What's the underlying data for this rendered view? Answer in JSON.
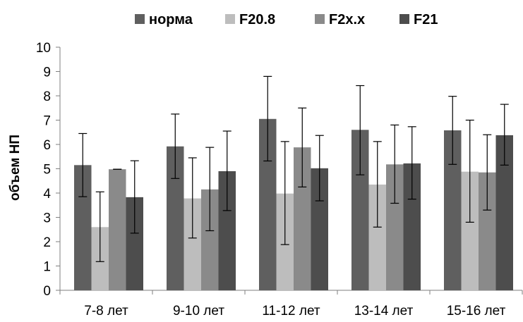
{
  "chart_data": {
    "type": "bar",
    "title": "",
    "xlabel": "",
    "ylabel": "объем НП",
    "ylim": [
      0,
      10
    ],
    "yticks": [
      0,
      1,
      2,
      3,
      4,
      5,
      6,
      7,
      8,
      9,
      10
    ],
    "grid": false,
    "legend_position": "top",
    "error_bars": true,
    "categories": [
      "7-8 лет",
      "9-10 лет",
      "11-12 лет",
      "13-14 лет",
      "15-16 лет"
    ],
    "series": [
      {
        "name": "норма",
        "color": "#5f5f5f",
        "values": [
          5.15,
          5.92,
          7.05,
          6.6,
          6.58
        ],
        "err_low": [
          3.85,
          4.6,
          5.32,
          4.75,
          5.18
        ],
        "err_high": [
          6.45,
          7.25,
          8.8,
          8.42,
          7.98
        ]
      },
      {
        "name": "F20.8",
        "color": "#bdbdbd",
        "values": [
          2.6,
          3.78,
          3.98,
          4.35,
          4.88
        ],
        "err_low": [
          1.18,
          2.15,
          1.88,
          2.6,
          2.8
        ],
        "err_high": [
          4.05,
          5.45,
          6.12,
          6.12,
          7.0
        ]
      },
      {
        "name": "F2x.x",
        "color": "#8a8a8a",
        "values": [
          4.98,
          4.15,
          5.88,
          5.18,
          4.85
        ],
        "err_low": [
          4.98,
          2.45,
          4.25,
          3.58,
          3.3
        ],
        "err_high": [
          4.98,
          5.88,
          7.5,
          6.8,
          6.4
        ]
      },
      {
        "name": "F21",
        "color": "#4d4d4d",
        "values": [
          3.83,
          4.9,
          5.02,
          5.22,
          6.38
        ],
        "err_low": [
          2.35,
          3.28,
          3.68,
          3.75,
          5.15
        ],
        "err_high": [
          5.33,
          6.55,
          6.37,
          6.73,
          7.65
        ]
      }
    ]
  }
}
